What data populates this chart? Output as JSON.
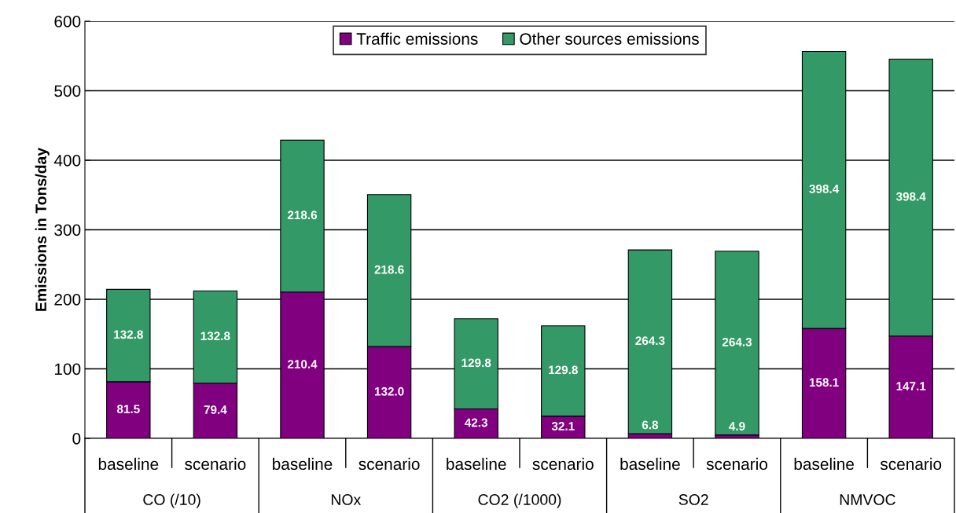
{
  "chart_data": {
    "type": "bar",
    "stacked": true,
    "ylabel": "Emissions in Tons/day",
    "categories": [
      "baseline",
      "scenario",
      "baseline",
      "scenario",
      "baseline",
      "scenario",
      "baseline",
      "scenario",
      "baseline",
      "scenario"
    ],
    "annotations": [
      "CO (/10)",
      "NOx",
      "CO2 (/1000)",
      "SO2",
      "NMVOC"
    ],
    "series": [
      {
        "name": "Traffic emissions",
        "color": "#800080",
        "values": [
          81.5,
          79.4,
          210.4,
          132.0,
          42.3,
          32.1,
          6.8,
          4.9,
          158.1,
          147.1
        ],
        "value_labels": [
          "81.5",
          "79.4",
          "210.4",
          "132.0",
          "42.3",
          "32.1",
          "6.8",
          "4.9",
          "158.1",
          "147.1"
        ]
      },
      {
        "name": "Other sources emissions",
        "color": "#339966",
        "values": [
          132.8,
          132.8,
          218.6,
          218.6,
          129.8,
          129.8,
          264.3,
          264.3,
          398.4,
          398.4
        ],
        "value_labels": [
          "132.8",
          "132.8",
          "218.6",
          "218.6",
          "129.8",
          "129.8",
          "264.3",
          "264.3",
          "398.4",
          "398.4"
        ]
      }
    ],
    "ylim": [
      0,
      600
    ],
    "yticks": [
      0,
      100,
      200,
      300,
      400,
      500,
      600
    ],
    "grid": "y",
    "legend": "top"
  }
}
